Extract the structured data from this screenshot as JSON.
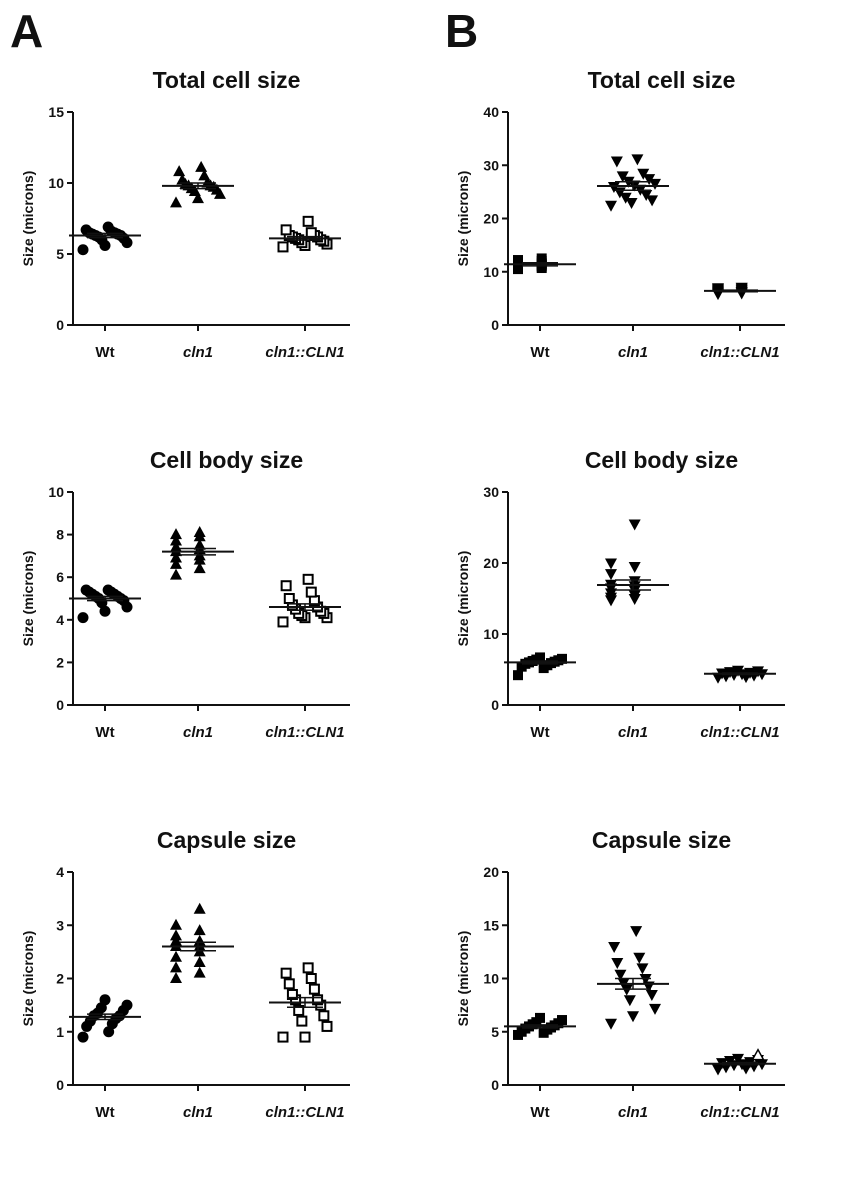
{
  "panel_labels": {
    "left": "A",
    "right": "B"
  },
  "styles": {
    "filled_color": "#000000",
    "hollow_fill": "#ffffff",
    "hollow_stroke": "#000000"
  },
  "chart_data": [
    {
      "panel": "A",
      "type": "scatter",
      "title": "Total cell size",
      "ylabel": "Size (microns)",
      "ylim": [
        0,
        15
      ],
      "yticks": [
        "0",
        "5",
        "10",
        "15"
      ],
      "categories": [
        "Wt",
        "cln1",
        "cln1::CLN1"
      ],
      "category_italic": [
        false,
        true,
        true
      ],
      "means": [
        6.3,
        9.8,
        6.1
      ],
      "sem": [
        0.15,
        0.2,
        0.12
      ],
      "series": [
        {
          "category": "Wt",
          "marker": "circle",
          "values": [
            5.3,
            5.6,
            5.8,
            6.0,
            6.1,
            6.2,
            6.3,
            6.3,
            6.4,
            6.4,
            6.5,
            6.5,
            6.6,
            6.7,
            6.9
          ]
        },
        {
          "category": "cln1",
          "marker": "triangle-up",
          "values": [
            8.6,
            8.9,
            9.2,
            9.4,
            9.5,
            9.6,
            9.7,
            9.8,
            9.8,
            9.9,
            10.0,
            10.2,
            10.5,
            10.8,
            11.1
          ]
        },
        {
          "category": "cln1::CLN1",
          "marker": "square-open",
          "values": [
            5.5,
            5.6,
            5.7,
            5.8,
            5.9,
            6.0,
            6.0,
            6.1,
            6.2,
            6.2,
            6.3,
            6.3,
            6.5,
            6.7,
            7.3
          ]
        }
      ]
    },
    {
      "panel": "B",
      "type": "scatter",
      "title": "Total cell size",
      "ylabel": "Size (microns)",
      "ylim": [
        0,
        40
      ],
      "yticks": [
        "0",
        "10",
        "20",
        "30",
        "40"
      ],
      "categories": [
        "Wt",
        "cln1",
        "cln1::CLN1"
      ],
      "category_italic": [
        false,
        true,
        true
      ],
      "means": [
        11.4,
        26.1,
        6.4
      ],
      "sem": [
        0.3,
        0.8,
        0.15
      ],
      "series": [
        {
          "category": "Wt",
          "marker": "square",
          "values": [
            10.5,
            10.7,
            10.8,
            11.0,
            11.1,
            11.2,
            11.3,
            11.4,
            11.5,
            11.6,
            11.8,
            12.0,
            12.2,
            12.5
          ]
        },
        {
          "category": "cln1",
          "marker": "triangle-down",
          "values": [
            22.5,
            23.0,
            23.5,
            24.0,
            24.5,
            25.0,
            25.5,
            26.0,
            26.3,
            26.6,
            27.0,
            27.5,
            28.0,
            28.5,
            30.8,
            31.2
          ]
        },
        {
          "category": "cln1::CLN1",
          "marker": "triangle-down",
          "values": [
            5.9,
            6.0,
            6.1,
            6.2,
            6.3,
            6.3,
            6.4,
            6.5,
            6.6,
            6.7,
            6.8,
            6.9,
            7.0,
            7.1
          ]
        }
      ]
    },
    {
      "panel": "A",
      "type": "scatter",
      "title": "Cell body size",
      "ylabel": "Size (microns)",
      "ylim": [
        0,
        10
      ],
      "yticks": [
        "0",
        "2",
        "4",
        "6",
        "8",
        "10"
      ],
      "categories": [
        "Wt",
        "cln1",
        "cln1::CLN1"
      ],
      "category_italic": [
        false,
        true,
        true
      ],
      "means": [
        5.0,
        7.2,
        4.6
      ],
      "sem": [
        0.1,
        0.15,
        0.15
      ],
      "series": [
        {
          "category": "Wt",
          "marker": "circle",
          "values": [
            4.1,
            4.4,
            4.6,
            4.8,
            4.9,
            5.0,
            5.0,
            5.1,
            5.1,
            5.2,
            5.2,
            5.3,
            5.3,
            5.4,
            5.4
          ]
        },
        {
          "category": "cln1",
          "marker": "triangle-up",
          "values": [
            6.1,
            6.4,
            6.6,
            6.8,
            6.9,
            7.0,
            7.2,
            7.3,
            7.4,
            7.5,
            7.7,
            7.9,
            8.0,
            8.1
          ]
        },
        {
          "category": "cln1::CLN1",
          "marker": "square-open",
          "values": [
            3.9,
            4.1,
            4.1,
            4.2,
            4.3,
            4.3,
            4.4,
            4.5,
            4.6,
            4.7,
            4.9,
            5.0,
            5.3,
            5.6,
            5.9
          ]
        }
      ]
    },
    {
      "panel": "B",
      "type": "scatter",
      "title": "Cell body size",
      "ylabel": "Size (microns)",
      "ylim": [
        0,
        30
      ],
      "yticks": [
        "0",
        "10",
        "20",
        "30"
      ],
      "categories": [
        "Wt",
        "cln1",
        "cln1::CLN1"
      ],
      "category_italic": [
        false,
        true,
        true
      ],
      "means": [
        6.0,
        16.9,
        4.4
      ],
      "sem": [
        0.2,
        0.7,
        0.1
      ],
      "series": [
        {
          "category": "Wt",
          "marker": "square",
          "values": [
            4.2,
            5.2,
            5.4,
            5.6,
            5.8,
            5.9,
            6.0,
            6.1,
            6.2,
            6.3,
            6.4,
            6.5,
            6.7
          ]
        },
        {
          "category": "cln1",
          "marker": "triangle-down",
          "values": [
            14.8,
            15.0,
            15.2,
            15.5,
            15.8,
            16.2,
            16.5,
            16.8,
            17.0,
            17.5,
            18.5,
            19.5,
            20.0,
            25.5
          ]
        },
        {
          "category": "cln1::CLN1",
          "marker": "triangle-down",
          "values": [
            3.9,
            4.0,
            4.1,
            4.2,
            4.3,
            4.4,
            4.4,
            4.5,
            4.6,
            4.7,
            4.8,
            4.9
          ]
        }
      ]
    },
    {
      "panel": "A",
      "type": "scatter",
      "title": "Capsule size",
      "ylabel": "Size (microns)",
      "ylim": [
        0,
        4
      ],
      "yticks": [
        "0",
        "1",
        "2",
        "3",
        "4"
      ],
      "categories": [
        "Wt",
        "cln1",
        "cln1::CLN1"
      ],
      "category_italic": [
        false,
        true,
        true
      ],
      "means": [
        1.28,
        2.6,
        1.55
      ],
      "sem": [
        0.05,
        0.08,
        0.09
      ],
      "series": [
        {
          "category": "Wt",
          "marker": "circle",
          "values": [
            0.9,
            1.0,
            1.1,
            1.15,
            1.2,
            1.25,
            1.3,
            1.3,
            1.35,
            1.4,
            1.45,
            1.5,
            1.6
          ]
        },
        {
          "category": "cln1",
          "marker": "triangle-up",
          "values": [
            2.0,
            2.1,
            2.2,
            2.3,
            2.4,
            2.5,
            2.6,
            2.6,
            2.7,
            2.7,
            2.8,
            2.9,
            3.0,
            3.3
          ]
        },
        {
          "category": "cln1::CLN1",
          "marker": "square-open",
          "values": [
            0.9,
            0.9,
            1.1,
            1.2,
            1.3,
            1.4,
            1.5,
            1.6,
            1.6,
            1.7,
            1.8,
            1.9,
            2.0,
            2.1,
            2.2
          ]
        }
      ]
    },
    {
      "panel": "B",
      "type": "scatter",
      "title": "Capsule size",
      "ylabel": "Size (microns)",
      "ylim": [
        0,
        20
      ],
      "yticks": [
        "0",
        "5",
        "10",
        "15",
        "20"
      ],
      "categories": [
        "Wt",
        "cln1",
        "cln1::CLN1"
      ],
      "category_italic": [
        false,
        true,
        true
      ],
      "means": [
        5.5,
        9.5,
        2.0
      ],
      "sem": [
        0.15,
        0.5,
        0.1
      ],
      "series": [
        {
          "category": "Wt",
          "marker": "square",
          "values": [
            4.7,
            4.9,
            5.0,
            5.2,
            5.3,
            5.4,
            5.5,
            5.6,
            5.7,
            5.8,
            5.9,
            6.1,
            6.3
          ]
        },
        {
          "category": "cln1",
          "marker": "triangle-down",
          "values": [
            5.8,
            6.5,
            7.2,
            8.0,
            8.5,
            9.0,
            9.3,
            9.6,
            10.0,
            10.4,
            11.0,
            11.5,
            12.0,
            13.0,
            14.5
          ]
        },
        {
          "category": "cln1::CLN1",
          "marker": "triangle-down",
          "values": [
            1.5,
            1.6,
            1.7,
            1.8,
            1.9,
            2.0,
            2.0,
            2.1,
            2.2,
            2.3,
            2.4,
            2.5
          ]
        },
        {
          "category": "cln1::CLN1",
          "marker": "triangle-up-open",
          "values": [
            2.8
          ]
        }
      ]
    }
  ]
}
